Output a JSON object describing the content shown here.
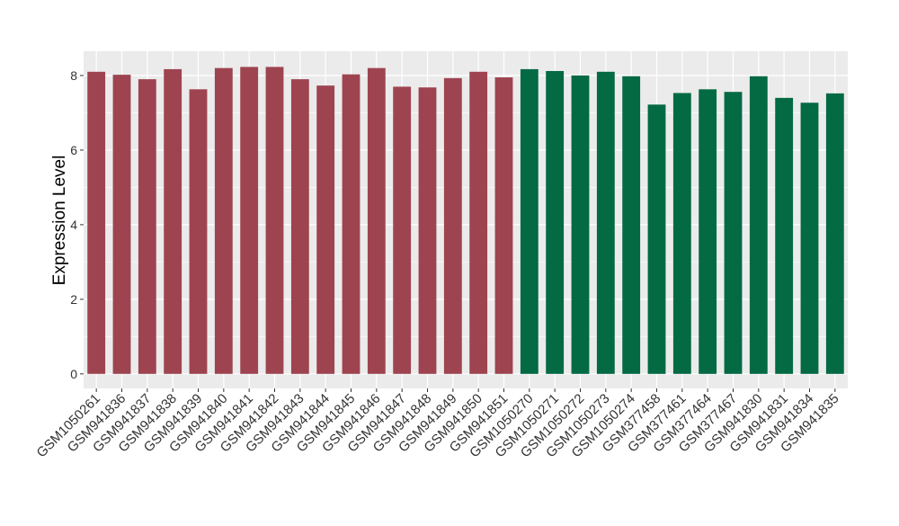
{
  "chart_data": {
    "type": "bar",
    "ylabel": "Expression Level",
    "categories": [
      "GSM1050261",
      "GSM941836",
      "GSM941837",
      "GSM941838",
      "GSM941839",
      "GSM941840",
      "GSM941841",
      "GSM941842",
      "GSM941843",
      "GSM941844",
      "GSM941845",
      "GSM941846",
      "GSM941847",
      "GSM941848",
      "GSM941849",
      "GSM941850",
      "GSM941851",
      "GSM1050270",
      "GSM1050271",
      "GSM1050272",
      "GSM1050273",
      "GSM1050274",
      "GSM377458",
      "GSM377461",
      "GSM377464",
      "GSM377467",
      "GSM941830",
      "GSM941831",
      "GSM941834",
      "GSM941835"
    ],
    "values": [
      8.1,
      8.02,
      7.9,
      8.17,
      7.63,
      8.2,
      8.23,
      8.23,
      7.9,
      7.73,
      8.03,
      8.2,
      7.7,
      7.68,
      7.93,
      8.1,
      7.95,
      8.17,
      8.12,
      8.0,
      8.1,
      7.98,
      7.22,
      7.53,
      7.63,
      7.56,
      7.98,
      7.4,
      7.27,
      7.52
    ],
    "colors": [
      "#9e4450",
      "#9e4450",
      "#9e4450",
      "#9e4450",
      "#9e4450",
      "#9e4450",
      "#9e4450",
      "#9e4450",
      "#9e4450",
      "#9e4450",
      "#9e4450",
      "#9e4450",
      "#9e4450",
      "#9e4450",
      "#9e4450",
      "#9e4450",
      "#9e4450",
      "#036a44",
      "#036a44",
      "#036a44",
      "#036a44",
      "#036a44",
      "#036a44",
      "#036a44",
      "#036a44",
      "#036a44",
      "#036a44",
      "#036a44",
      "#036a44",
      "#036a44"
    ],
    "ylim": [
      -0.39,
      8.65
    ],
    "yticks": [
      0,
      2,
      4,
      6,
      8
    ],
    "minor_yticks": [
      1,
      3,
      5,
      7
    ],
    "grid": true
  }
}
